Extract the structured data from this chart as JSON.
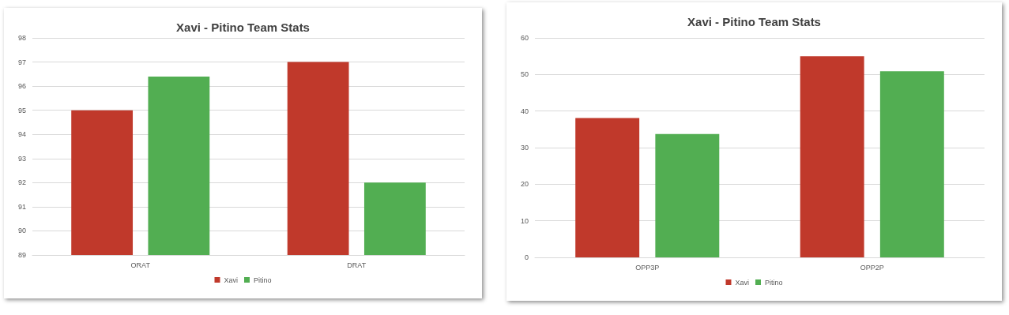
{
  "chart_data": [
    {
      "type": "bar",
      "title": "Xavi - Pitino Team Stats",
      "categories": [
        "ORAT",
        "DRAT"
      ],
      "series": [
        {
          "name": "Xavi",
          "color": "#c0392b",
          "values": [
            95.0,
            97.0
          ]
        },
        {
          "name": "Pitino",
          "color": "#52ae52",
          "values": [
            96.4,
            92.0
          ]
        }
      ],
      "ylim": [
        89,
        98
      ],
      "yticks": [
        89,
        90,
        91,
        92,
        93,
        94,
        95,
        96,
        97,
        98
      ],
      "grid": "y",
      "legend": "bottom"
    },
    {
      "type": "bar",
      "title": "Xavi - Pitino Team Stats",
      "categories": [
        "OPP3P",
        "OPP2P"
      ],
      "series": [
        {
          "name": "Xavi",
          "color": "#c0392b",
          "values": [
            38.1,
            55.0
          ]
        },
        {
          "name": "Pitino",
          "color": "#52ae52",
          "values": [
            33.7,
            50.9
          ]
        }
      ],
      "ylim": [
        0,
        60
      ],
      "yticks": [
        0,
        10,
        20,
        30,
        40,
        50,
        60
      ],
      "grid": "y",
      "legend": "bottom"
    }
  ]
}
